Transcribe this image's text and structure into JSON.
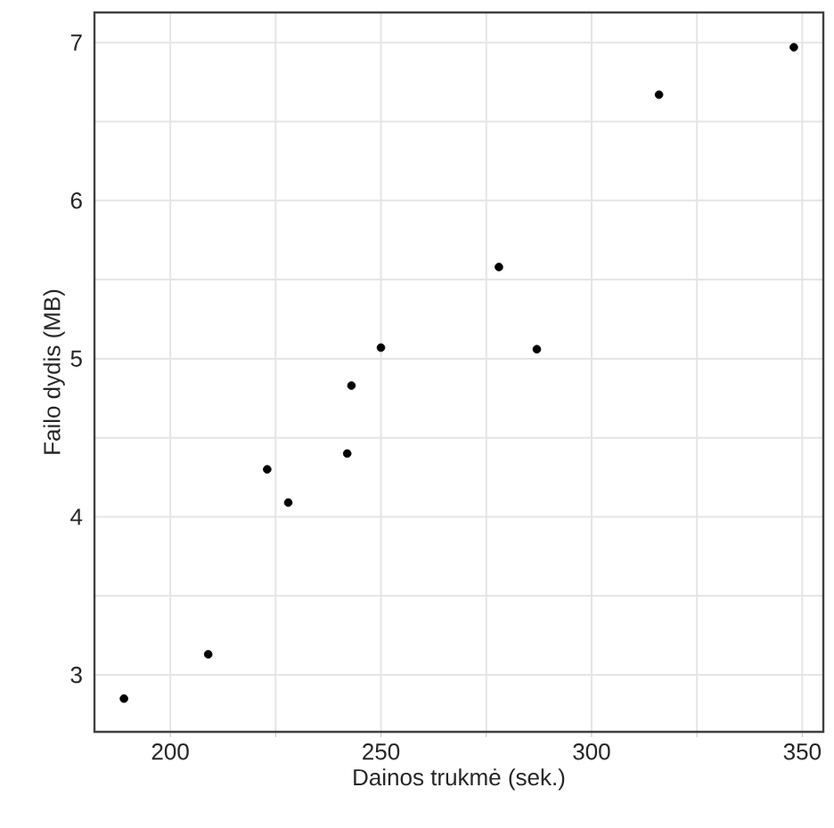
{
  "chart_data": {
    "type": "scatter",
    "xlabel": "Dainos trukmė (sek.)",
    "ylabel": "Failo dydis (MB)",
    "x": [
      189,
      209,
      223,
      228,
      242,
      243,
      250,
      278,
      287,
      316,
      348
    ],
    "values": [
      2.85,
      3.13,
      4.3,
      4.09,
      4.4,
      4.83,
      5.07,
      5.58,
      5.06,
      6.67,
      6.97
    ],
    "color": "#000000",
    "marker": "circle",
    "grid": true,
    "xlim": [
      182,
      355
    ],
    "ylim": [
      2.64,
      7.19
    ],
    "xticks": [
      200,
      {
        "value": 225,
        "label": null
      },
      250,
      {
        "value": 275,
        "label": null
      },
      300,
      {
        "value": 325,
        "label": null
      },
      350
    ],
    "yticks": [
      3,
      {
        "value": 3.5,
        "label": null
      },
      4,
      {
        "value": 4.5,
        "label": null
      },
      5,
      {
        "value": 5.5,
        "label": null
      },
      6,
      {
        "value": 6.5,
        "label": null
      },
      7
    ]
  }
}
